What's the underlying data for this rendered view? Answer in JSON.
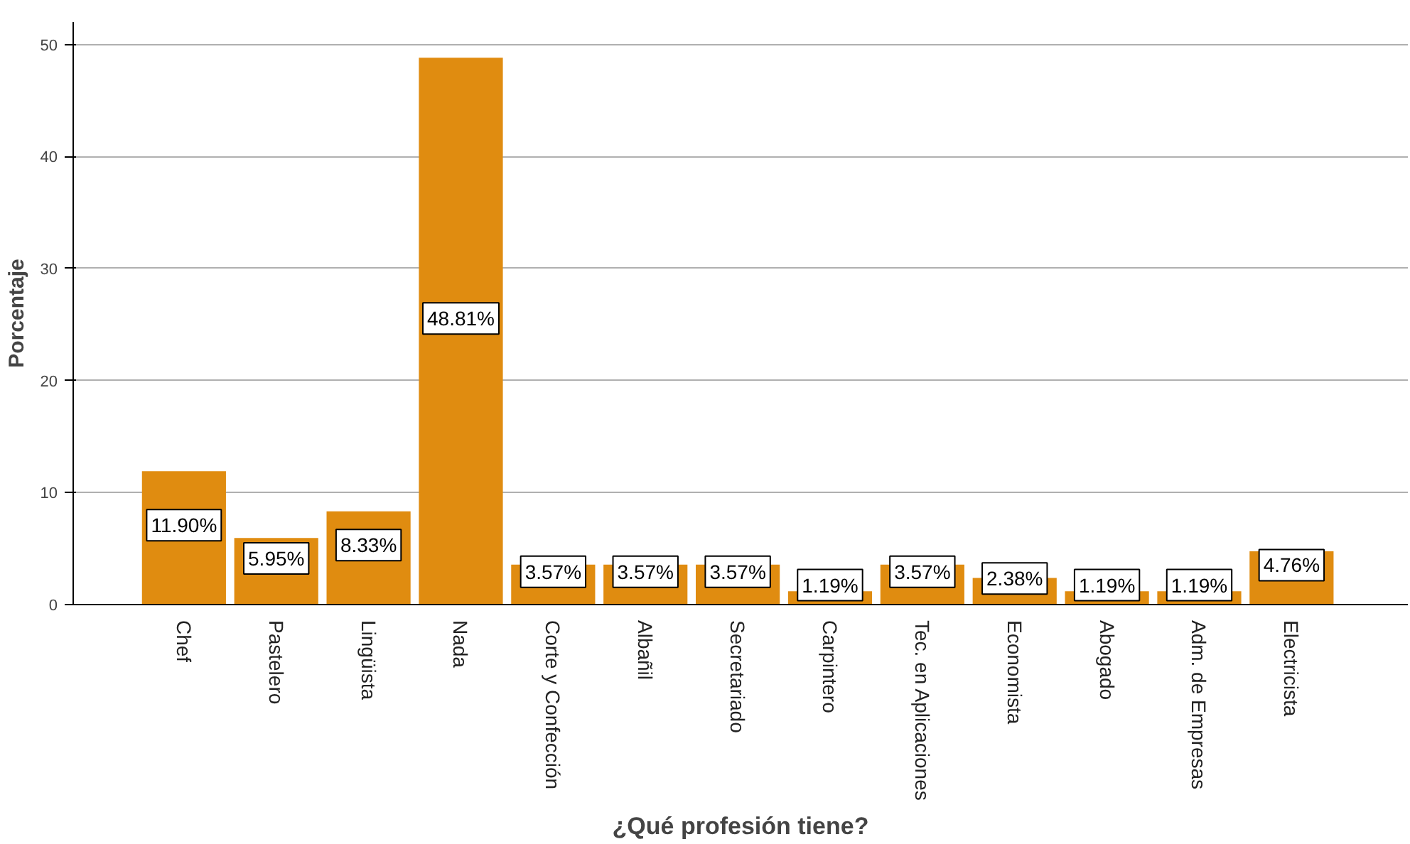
{
  "chart_data": {
    "type": "bar",
    "xlabel": "¿Qué profesión tiene?",
    "ylabel": "Porcentaje",
    "categories": [
      "Chef",
      "Pastelero",
      "Lingüista",
      "Nada",
      "Corte y Confección",
      "Albañil",
      "Secretariado",
      "Carpintero",
      "Tec. en Aplicaciones",
      "Economista",
      "Abogado",
      "Adm. de Empresas",
      "Electricista"
    ],
    "values": [
      11.9,
      5.95,
      8.33,
      48.81,
      3.57,
      3.57,
      3.57,
      1.19,
      3.57,
      2.38,
      1.19,
      1.19,
      4.76
    ],
    "value_labels": [
      "11.90%",
      "5.95%",
      "8.33%",
      "48.81%",
      "3.57%",
      "3.57%",
      "3.57%",
      "1.19%",
      "3.57%",
      "2.38%",
      "1.19%",
      "1.19%",
      "4.76%"
    ],
    "color": "#e08c10",
    "ylim": [
      0,
      52
    ],
    "yticks": [
      0,
      10,
      20,
      30,
      40,
      50
    ],
    "grid": "y"
  }
}
